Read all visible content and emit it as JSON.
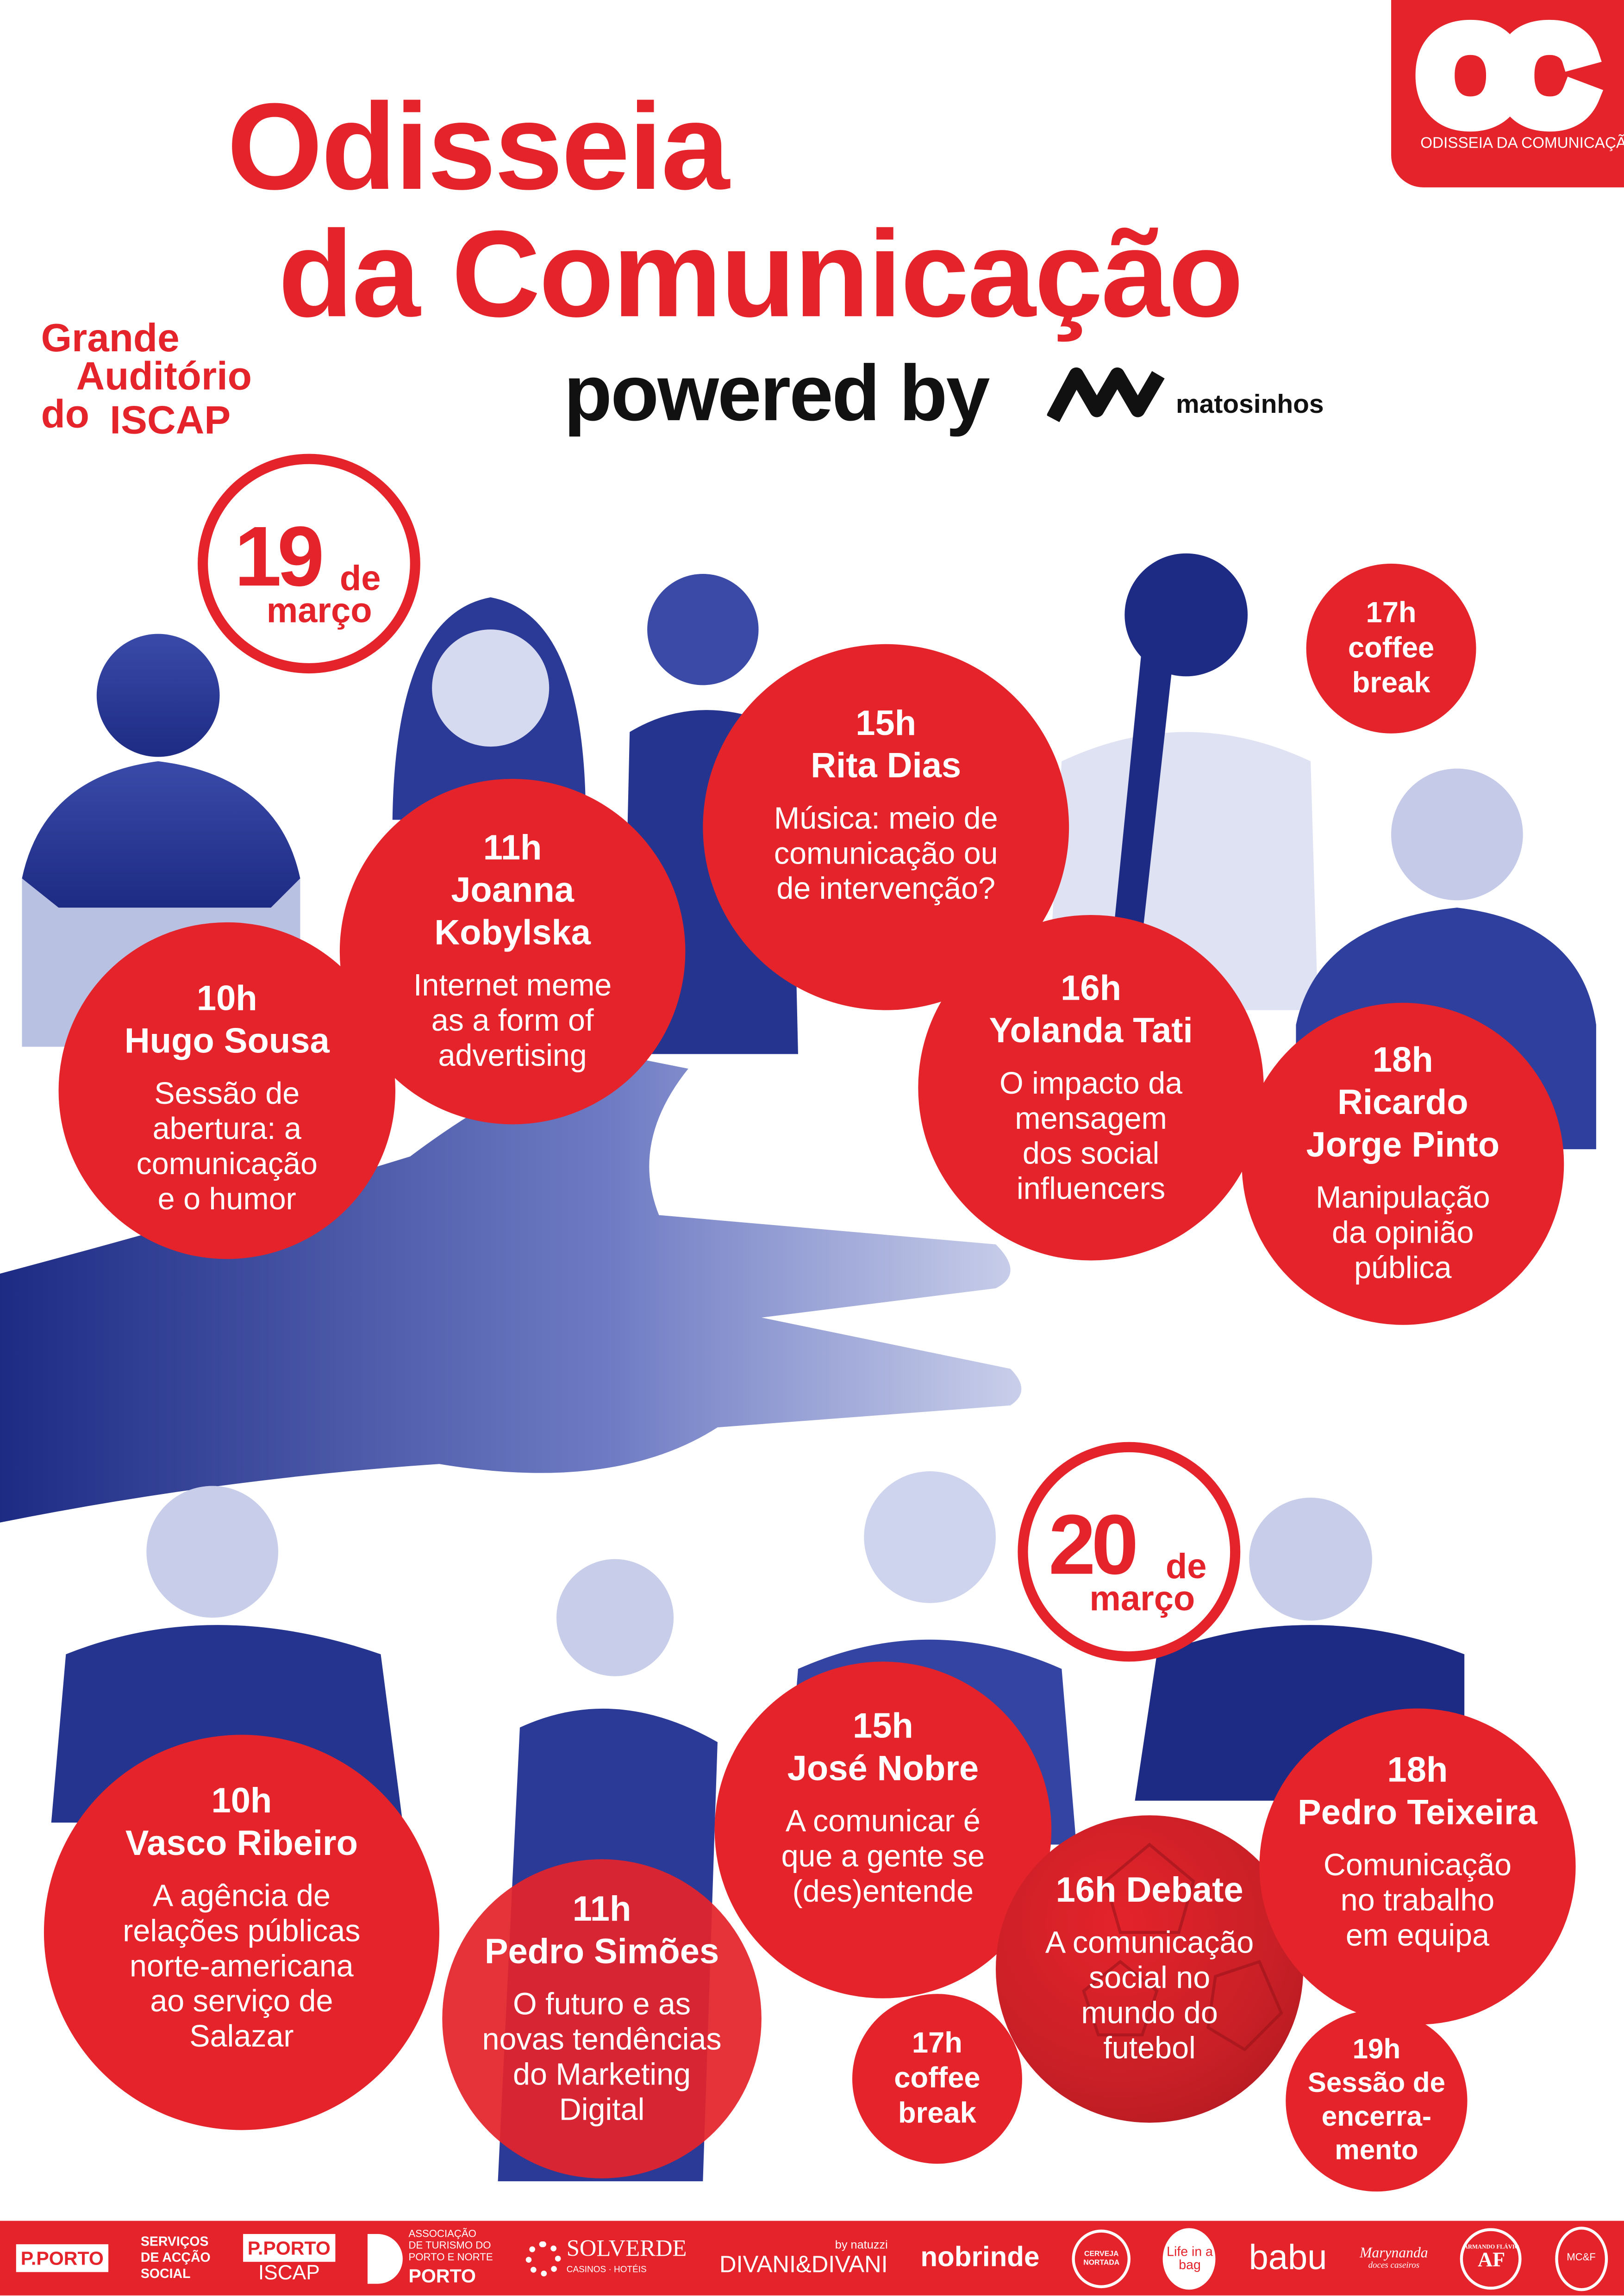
{
  "header": {
    "title_line1": "Odisseia",
    "title_line2": "da Comunicação",
    "powered_by": "powered by",
    "sponsor_name": "matosinhos"
  },
  "logo": {
    "letters": "OC",
    "name": "ODISSEIA DA COMUNICAÇÃO"
  },
  "venue": {
    "line1": "Grande",
    "line2": "Auditório",
    "line3a": "do",
    "line3b": "ISCAP"
  },
  "colors": {
    "accent": "#e4232b",
    "photo_tint": "#25358f",
    "text": "#111111"
  },
  "days": [
    {
      "day": "19",
      "de": "de",
      "month": "março",
      "sessions": [
        {
          "time": "10h",
          "speaker": "Hugo Sousa",
          "talk": "Sessão de\nabertura: a\ncomunicação\ne o humor"
        },
        {
          "time": "11h",
          "speaker": "Joanna\nKobylska",
          "talk": "Internet meme\nas a form of\nadvertising"
        },
        {
          "time": "15h",
          "speaker": "Rita Dias",
          "talk": "Música: meio de\ncomunicação ou\nde intervenção?"
        },
        {
          "time": "16h",
          "speaker": "Yolanda Tati",
          "talk": "O impacto da\nmensagem\ndos social\ninfluencers"
        },
        {
          "time": "18h",
          "speaker": "Ricardo\nJorge Pinto",
          "talk": "Manipulação\nda opinião\npública"
        }
      ],
      "break": "17h\ncoffee\nbreak"
    },
    {
      "day": "20",
      "de": "de",
      "month": "março",
      "sessions": [
        {
          "time": "10h",
          "speaker": "Vasco Ribeiro",
          "talk": "A agência de\nrelações públicas\nnorte-americana\nao serviço de\nSalazar"
        },
        {
          "time": "11h",
          "speaker": "Pedro Simões",
          "talk": "O futuro e as\nnovas tendências\ndo Marketing\nDigital"
        },
        {
          "time": "15h",
          "speaker": "José Nobre",
          "talk": "A comunicar é\nque a gente se\n(des)entende"
        },
        {
          "time": "16h Debate",
          "speaker": "",
          "talk": "A comunicação\nsocial no\nmundo do\nfutebol"
        },
        {
          "time": "18h",
          "speaker": "Pedro Teixeira",
          "talk": "Comunicação\nno trabalho\nem equipa"
        }
      ],
      "break": "17h\ncoffee\nbreak",
      "closing": "19h\nSessão de\nencerra-\nmento"
    }
  ],
  "footer": {
    "sponsors": [
      {
        "name": "P.PORTO",
        "sub": "SERVIÇOS\nDE ACÇÃO\nSOCIAL"
      },
      {
        "name": "P.PORTO",
        "sub": "ISCAP"
      },
      {
        "name": "PORTO",
        "sub": "ASSOCIAÇÃO\nDE TURISMO DO\nPORTO E NORTE"
      },
      {
        "name": "SOLVERDE",
        "sub": "CASINOS · HOTÉIS"
      },
      {
        "name": "DIVANI&DIVANI",
        "sub": "by natuzzi"
      },
      {
        "name": "nobrinde",
        "sub": ""
      },
      {
        "name": "NORTADA",
        "sub": "CERVEJA"
      },
      {
        "name": "Life in a bag",
        "sub": ""
      },
      {
        "name": "babu",
        "sub": ""
      },
      {
        "name": "Marynanda",
        "sub": "doces caseiros"
      },
      {
        "name": "AF",
        "sub": "ARMANDO FLÁVIO"
      },
      {
        "name": "MC&F",
        "sub": ""
      }
    ]
  }
}
